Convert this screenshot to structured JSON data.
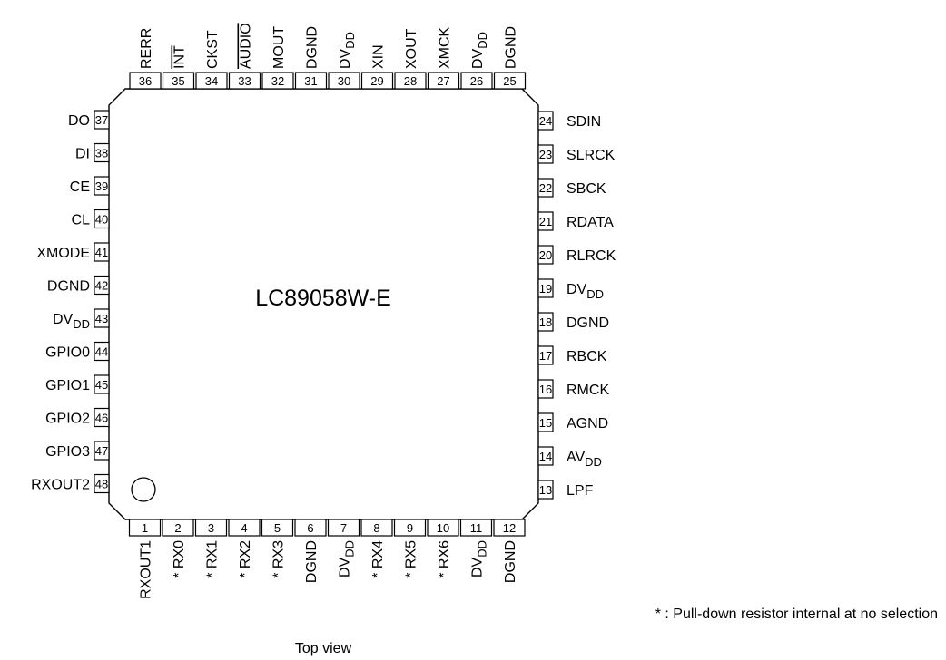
{
  "chip": {
    "part_number": "LC89058W-E"
  },
  "caption": "Top view",
  "footnote": "* : Pull-down resistor internal at no selection",
  "pins_bottom": [
    {
      "num": "1",
      "label": "RXOUT1"
    },
    {
      "num": "2",
      "label": "* RX0"
    },
    {
      "num": "3",
      "label": "* RX1"
    },
    {
      "num": "4",
      "label": "* RX2"
    },
    {
      "num": "5",
      "label": "* RX3"
    },
    {
      "num": "6",
      "label": "DGND"
    },
    {
      "num": "7",
      "label": "DV",
      "sub": "DD"
    },
    {
      "num": "8",
      "label": "* RX4"
    },
    {
      "num": "9",
      "label": "* RX5"
    },
    {
      "num": "10",
      "label": "* RX6"
    },
    {
      "num": "11",
      "label": "DV",
      "sub": "DD"
    },
    {
      "num": "12",
      "label": "DGND"
    }
  ],
  "pins_right": [
    {
      "num": "13",
      "label": "LPF"
    },
    {
      "num": "14",
      "label": "AV",
      "sub": "DD"
    },
    {
      "num": "15",
      "label": "AGND"
    },
    {
      "num": "16",
      "label": "RMCK"
    },
    {
      "num": "17",
      "label": "RBCK"
    },
    {
      "num": "18",
      "label": "DGND"
    },
    {
      "num": "19",
      "label": "DV",
      "sub": "DD"
    },
    {
      "num": "20",
      "label": "RLRCK"
    },
    {
      "num": "21",
      "label": "RDATA"
    },
    {
      "num": "22",
      "label": "SBCK"
    },
    {
      "num": "23",
      "label": "SLRCK"
    },
    {
      "num": "24",
      "label": "SDIN"
    }
  ],
  "pins_top": [
    {
      "num": "25",
      "label": "DGND"
    },
    {
      "num": "26",
      "label": "DV",
      "sub": "DD"
    },
    {
      "num": "27",
      "label": "XMCK"
    },
    {
      "num": "28",
      "label": "XOUT"
    },
    {
      "num": "29",
      "label": "XIN"
    },
    {
      "num": "30",
      "label": "DV",
      "sub": "DD"
    },
    {
      "num": "31",
      "label": "DGND"
    },
    {
      "num": "32",
      "label": "MOUT"
    },
    {
      "num": "33",
      "label": "AUDIO",
      "overline": true
    },
    {
      "num": "34",
      "label": "CKST"
    },
    {
      "num": "35",
      "label": "INT",
      "overline": true
    },
    {
      "num": "36",
      "label": "RERR"
    }
  ],
  "pins_left": [
    {
      "num": "37",
      "label": "DO"
    },
    {
      "num": "38",
      "label": "DI"
    },
    {
      "num": "39",
      "label": "CE"
    },
    {
      "num": "40",
      "label": "CL"
    },
    {
      "num": "41",
      "label": "XMODE"
    },
    {
      "num": "42",
      "label": "DGND"
    },
    {
      "num": "43",
      "label": "DV",
      "sub": "DD"
    },
    {
      "num": "44",
      "label": "GPIO0"
    },
    {
      "num": "45",
      "label": "GPIO1"
    },
    {
      "num": "46",
      "label": "GPIO2"
    },
    {
      "num": "47",
      "label": "GPIO3"
    },
    {
      "num": "48",
      "label": "RXOUT2"
    }
  ]
}
